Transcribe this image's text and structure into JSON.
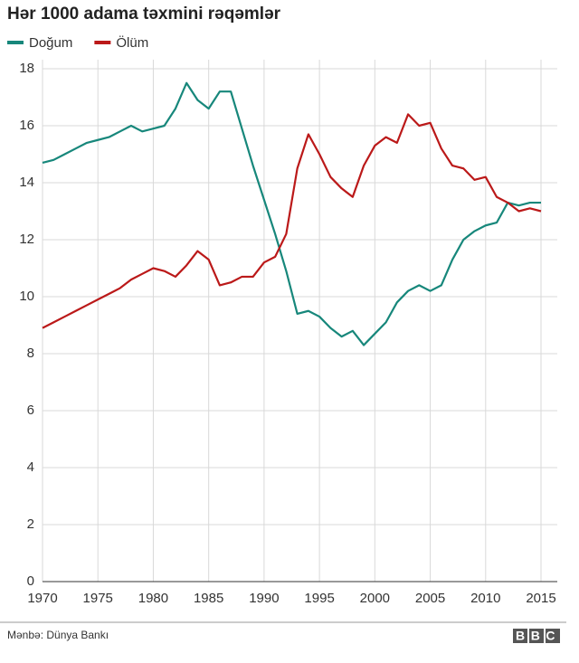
{
  "chart_data": {
    "type": "line",
    "title": "Hər 1000 adama təxmini rəqəmlər",
    "x": [
      1970,
      1971,
      1972,
      1973,
      1974,
      1975,
      1976,
      1977,
      1978,
      1979,
      1980,
      1981,
      1982,
      1983,
      1984,
      1985,
      1986,
      1987,
      1988,
      1989,
      1990,
      1991,
      1992,
      1993,
      1994,
      1995,
      1996,
      1997,
      1998,
      1999,
      2000,
      2001,
      2002,
      2003,
      2004,
      2005,
      2006,
      2007,
      2008,
      2009,
      2010,
      2011,
      2012,
      2013,
      2014,
      2015
    ],
    "series": [
      {
        "name": "Doğum",
        "color": "#17877b",
        "values": [
          14.7,
          14.8,
          15.0,
          15.2,
          15.4,
          15.5,
          15.6,
          15.8,
          16.0,
          15.8,
          15.9,
          16.0,
          16.6,
          17.5,
          16.9,
          16.6,
          17.2,
          17.2,
          15.9,
          14.6,
          13.4,
          12.2,
          10.9,
          9.4,
          9.5,
          9.3,
          8.9,
          8.6,
          8.8,
          8.3,
          8.7,
          9.1,
          9.8,
          10.2,
          10.4,
          10.2,
          10.4,
          11.3,
          12.0,
          12.3,
          12.5,
          12.6,
          13.3,
          13.2,
          13.3,
          13.3
        ]
      },
      {
        "name": "Ölüm",
        "color": "#bb1919",
        "values": [
          8.9,
          9.1,
          9.3,
          9.5,
          9.7,
          9.9,
          10.1,
          10.3,
          10.6,
          10.8,
          11.0,
          10.9,
          10.7,
          11.1,
          11.6,
          11.3,
          10.4,
          10.5,
          10.7,
          10.7,
          11.2,
          11.4,
          12.2,
          14.5,
          15.7,
          15.0,
          14.2,
          13.8,
          13.5,
          14.6,
          15.3,
          15.6,
          15.4,
          16.4,
          16.0,
          16.1,
          15.2,
          14.6,
          14.5,
          14.1,
          14.2,
          13.5,
          13.3,
          13.0,
          13.1,
          13.0
        ]
      }
    ],
    "xlim": [
      1970,
      2015
    ],
    "xticks": [
      1970,
      1975,
      1980,
      1985,
      1990,
      1995,
      2000,
      2005,
      2010,
      2015
    ],
    "ylim": [
      0,
      18
    ],
    "yticks": [
      0,
      2,
      4,
      6,
      8,
      10,
      12,
      14,
      16,
      18
    ],
    "grid": true,
    "legend": "top-left",
    "source": "Mənbə: Dünya Bankı",
    "logo": "BBC"
  }
}
